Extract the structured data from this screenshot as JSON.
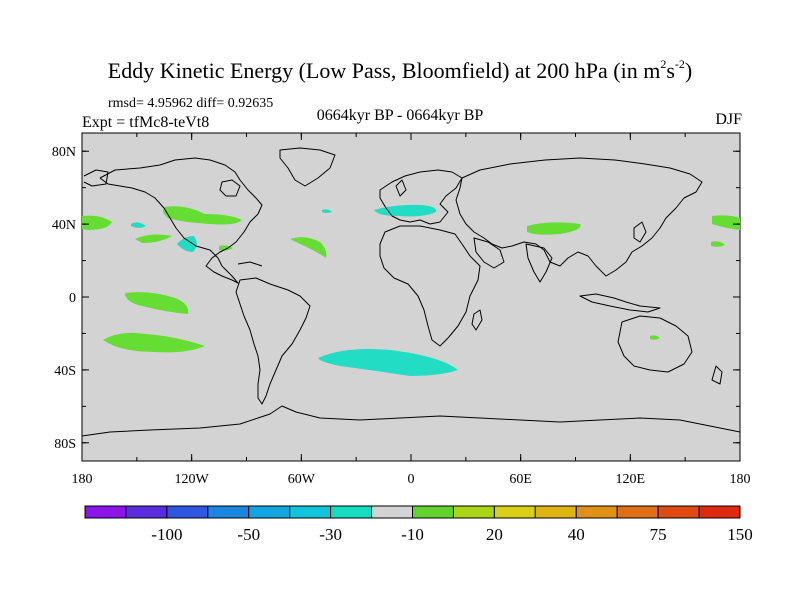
{
  "title": {
    "main": "Eddy Kinetic Energy (Low Pass, Bloomfield) at 200 hPa (in m",
    "sup1": "2",
    "mid": "s",
    "sup2": "-2",
    "end": ")"
  },
  "subtitle": {
    "stats": "rmsd= 4.95962  diff= 0.92635",
    "experiment": "Expt = tfMc8-teVt8",
    "period": "0664kyr BP - 0664kyr BP",
    "season": "DJF"
  },
  "map": {
    "ocean_land_color": "#d3d3d3",
    "coast_color": "#000000",
    "lon_ticks": [
      "180",
      "120W",
      "60W",
      "0",
      "60E",
      "120E",
      "180"
    ],
    "lat_ticks": [
      "80N",
      "40N",
      "0",
      "40S",
      "80S"
    ]
  },
  "colorbar": {
    "colors": [
      "#8a15e6",
      "#5a2ce0",
      "#2f57e0",
      "#1a86e0",
      "#12a6e0",
      "#12c4d9",
      "#18dcc0",
      "#d3d3d3",
      "#62d22f",
      "#a9d418",
      "#d8cf16",
      "#e0b414",
      "#e09216",
      "#e06e16",
      "#e04a14",
      "#de2a12"
    ],
    "labels": [
      "-100",
      "-50",
      "-30",
      "-10",
      "20",
      "40",
      "75",
      "150"
    ]
  },
  "anomalies": {
    "positive_color": "#66dd33",
    "negative_color": "#22ddc4"
  }
}
